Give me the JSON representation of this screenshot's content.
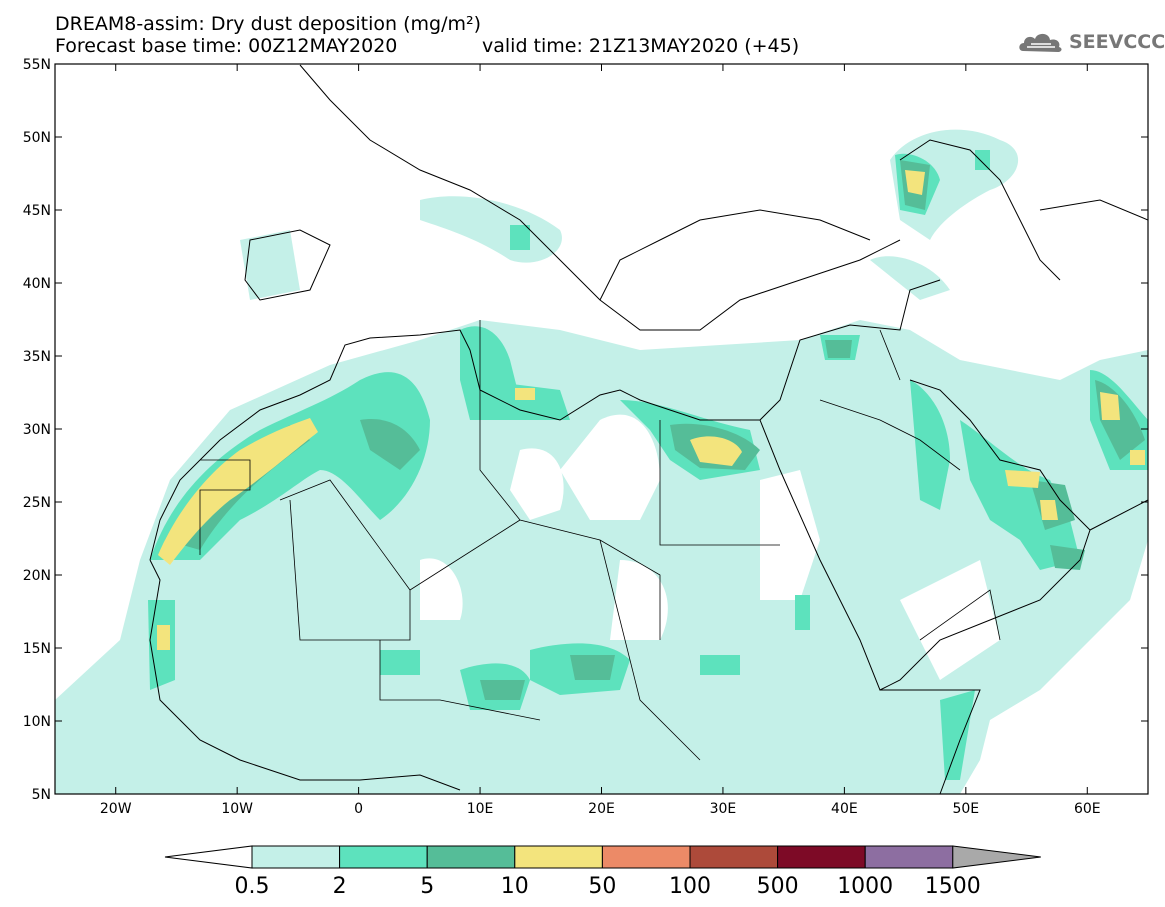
{
  "header": {
    "title_line1": "DREAM8-assim: Dry dust deposition (mg/m²)",
    "title_line2": "Forecast base time: 00Z12MAY2020",
    "valid_time": "valid time: 21Z13MAY2020 (+45)",
    "logo_text": "SEEVCCC",
    "logo_icon": "cloud-icon"
  },
  "map": {
    "extent": {
      "lon_min": -25,
      "lon_max": 65,
      "lat_min": 5,
      "lat_max": 55
    },
    "lat_ticks": [
      {
        "value": 55,
        "label": "55N"
      },
      {
        "value": 50,
        "label": "50N"
      },
      {
        "value": 45,
        "label": "45N"
      },
      {
        "value": 40,
        "label": "40N"
      },
      {
        "value": 35,
        "label": "35N"
      },
      {
        "value": 30,
        "label": "30N"
      },
      {
        "value": 25,
        "label": "25N"
      },
      {
        "value": 20,
        "label": "20N"
      },
      {
        "value": 15,
        "label": "15N"
      },
      {
        "value": 10,
        "label": "10N"
      },
      {
        "value": 5,
        "label": "5N"
      }
    ],
    "lon_ticks": [
      {
        "value": -20,
        "label": "20W"
      },
      {
        "value": -10,
        "label": "10W"
      },
      {
        "value": 0,
        "label": "0"
      },
      {
        "value": 10,
        "label": "10E"
      },
      {
        "value": 20,
        "label": "20E"
      },
      {
        "value": 30,
        "label": "30E"
      },
      {
        "value": 40,
        "label": "40E"
      },
      {
        "value": 50,
        "label": "50E"
      },
      {
        "value": 60,
        "label": "60E"
      }
    ]
  },
  "colorbar": {
    "labels": [
      "0.5",
      "2",
      "5",
      "10",
      "50",
      "100",
      "500",
      "1000",
      "1500"
    ],
    "colors": [
      "#c4f0e8",
      "#5de2bd",
      "#55bd98",
      "#f3e47d",
      "#ec8a67",
      "#ad4a3a",
      "#7d0a26",
      "#8d6ea1",
      "#a9a9a9"
    ],
    "underflow_color": "#ffffff",
    "overflow_color": "#a9a9a9"
  }
}
